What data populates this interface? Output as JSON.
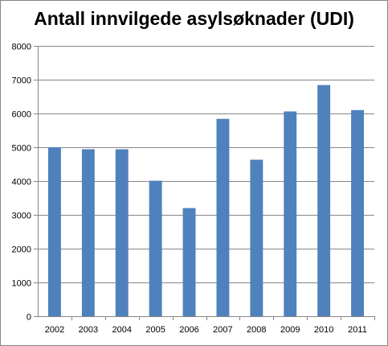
{
  "chart_data": {
    "type": "bar",
    "title": "Antall innvilgede asylsøknader (UDI)",
    "xlabel": "",
    "ylabel": "",
    "categories": [
      "2002",
      "2003",
      "2004",
      "2005",
      "2006",
      "2007",
      "2008",
      "2009",
      "2010",
      "2011"
    ],
    "series": [
      {
        "values": [
          5000,
          4940,
          4940,
          4010,
          3200,
          5840,
          4630,
          6060,
          6840,
          6100
        ]
      }
    ],
    "ylim": [
      0,
      8000
    ],
    "yticks": [
      "0",
      "1000",
      "2000",
      "3000",
      "4000",
      "5000",
      "6000",
      "7000",
      "8000"
    ],
    "grid": true,
    "legend": "none",
    "colors": {
      "bar": "#4f81bd",
      "grid": "#868686",
      "axis": "#868686"
    }
  }
}
